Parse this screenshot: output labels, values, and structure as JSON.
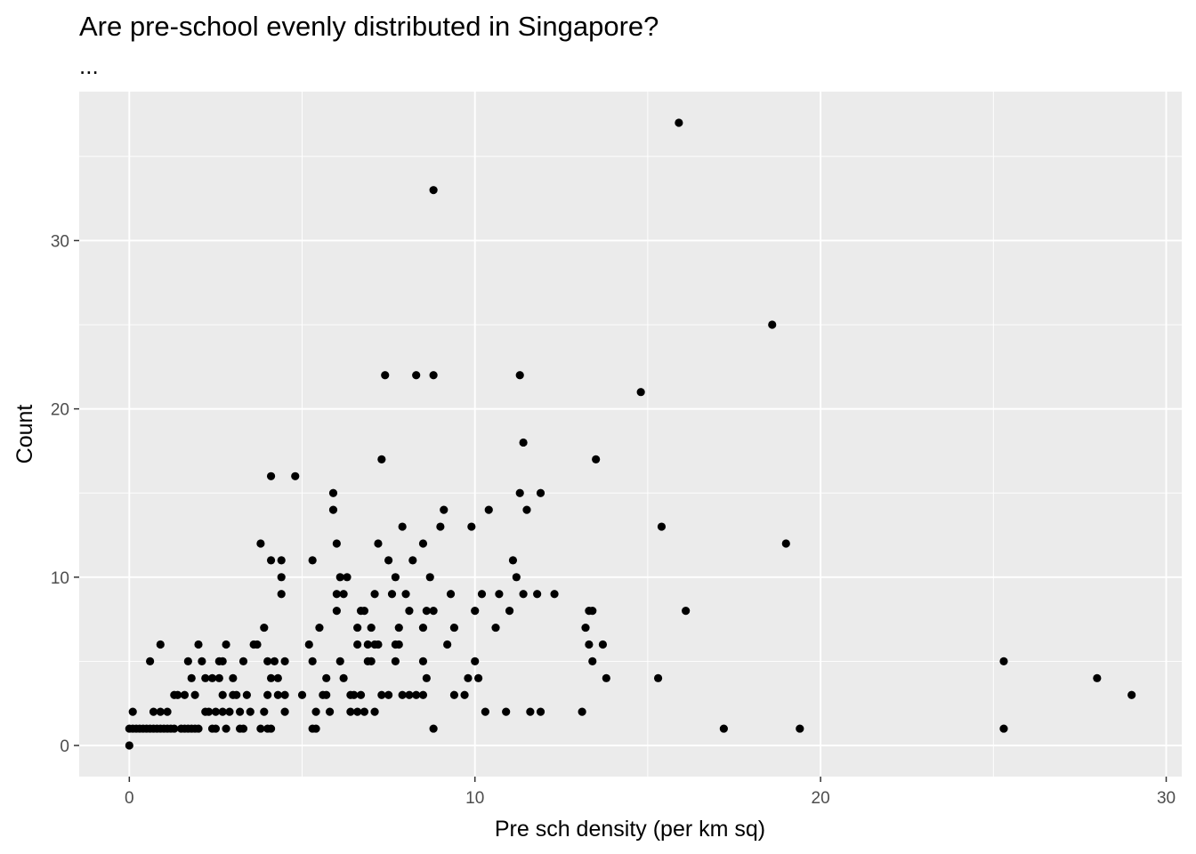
{
  "chart_data": {
    "type": "scatter",
    "title": "Are pre-school evenly distributed in Singapore?",
    "subtitle": "...",
    "xlabel": "Pre sch density (per km sq)",
    "ylabel": "Count",
    "xlim": [
      -1.45,
      30.45
    ],
    "ylim": [
      -1.85,
      38.85
    ],
    "x_ticks": [
      0,
      10,
      20,
      30
    ],
    "y_ticks": [
      0,
      10,
      20,
      30
    ],
    "x_tick_labels": [
      "0",
      "10",
      "20",
      "30"
    ],
    "y_tick_labels": [
      "0",
      "10",
      "20",
      "30"
    ],
    "grid": true,
    "colors": {
      "panel": "#ebebeb",
      "grid_major": "#ffffff",
      "point": "#000000"
    },
    "points": [
      [
        0,
        0
      ],
      [
        0,
        1
      ],
      [
        0.1,
        1
      ],
      [
        0.1,
        2
      ],
      [
        0.2,
        1
      ],
      [
        0.3,
        1
      ],
      [
        0.4,
        1
      ],
      [
        0.5,
        1
      ],
      [
        0.6,
        5
      ],
      [
        0.6,
        1
      ],
      [
        0.7,
        2
      ],
      [
        0.7,
        1
      ],
      [
        0.8,
        1
      ],
      [
        0.9,
        6
      ],
      [
        0.9,
        2
      ],
      [
        0.9,
        1
      ],
      [
        1.0,
        1
      ],
      [
        1.1,
        2
      ],
      [
        1.1,
        1
      ],
      [
        1.2,
        1
      ],
      [
        1.3,
        3
      ],
      [
        1.3,
        1
      ],
      [
        1.4,
        3
      ],
      [
        1.5,
        1
      ],
      [
        1.6,
        3
      ],
      [
        1.6,
        1
      ],
      [
        1.7,
        1
      ],
      [
        1.7,
        5
      ],
      [
        1.8,
        4
      ],
      [
        1.8,
        1
      ],
      [
        1.9,
        1
      ],
      [
        1.9,
        3
      ],
      [
        2.0,
        6
      ],
      [
        2.0,
        1
      ],
      [
        2.1,
        5
      ],
      [
        2.2,
        4
      ],
      [
        2.2,
        2
      ],
      [
        2.3,
        2
      ],
      [
        2.4,
        4
      ],
      [
        2.4,
        1
      ],
      [
        2.5,
        2
      ],
      [
        2.5,
        1
      ],
      [
        2.6,
        5
      ],
      [
        2.6,
        4
      ],
      [
        2.7,
        5
      ],
      [
        2.7,
        3
      ],
      [
        2.7,
        2
      ],
      [
        2.8,
        6
      ],
      [
        2.8,
        1
      ],
      [
        2.9,
        2
      ],
      [
        3.0,
        3
      ],
      [
        3.0,
        4
      ],
      [
        3.1,
        3
      ],
      [
        3.2,
        1
      ],
      [
        3.2,
        2
      ],
      [
        3.3,
        5
      ],
      [
        3.3,
        1
      ],
      [
        3.4,
        3
      ],
      [
        3.5,
        2
      ],
      [
        3.6,
        6
      ],
      [
        3.7,
        6
      ],
      [
        3.8,
        12
      ],
      [
        3.8,
        1
      ],
      [
        3.9,
        2
      ],
      [
        3.9,
        7
      ],
      [
        4.0,
        5
      ],
      [
        4.0,
        1
      ],
      [
        4.0,
        3
      ],
      [
        4.1,
        11
      ],
      [
        4.1,
        1
      ],
      [
        4.1,
        4
      ],
      [
        4.1,
        16
      ],
      [
        4.2,
        5
      ],
      [
        4.3,
        3
      ],
      [
        4.3,
        4
      ],
      [
        4.4,
        11
      ],
      [
        4.4,
        9
      ],
      [
        4.4,
        10
      ],
      [
        4.5,
        3
      ],
      [
        4.5,
        5
      ],
      [
        4.5,
        2
      ],
      [
        4.8,
        16
      ],
      [
        5.0,
        3
      ],
      [
        5.2,
        6
      ],
      [
        5.3,
        1
      ],
      [
        5.3,
        5
      ],
      [
        5.3,
        11
      ],
      [
        5.4,
        2
      ],
      [
        5.4,
        1
      ],
      [
        5.5,
        7
      ],
      [
        5.6,
        3
      ],
      [
        5.7,
        3
      ],
      [
        5.7,
        4
      ],
      [
        5.8,
        2
      ],
      [
        5.9,
        15
      ],
      [
        5.9,
        14
      ],
      [
        6.0,
        12
      ],
      [
        6.0,
        9
      ],
      [
        6.0,
        8
      ],
      [
        6.1,
        5
      ],
      [
        6.1,
        10
      ],
      [
        6.2,
        9
      ],
      [
        6.2,
        4
      ],
      [
        6.3,
        10
      ],
      [
        6.4,
        3
      ],
      [
        6.4,
        2
      ],
      [
        6.5,
        3
      ],
      [
        6.6,
        7
      ],
      [
        6.6,
        2
      ],
      [
        6.6,
        6
      ],
      [
        6.7,
        8
      ],
      [
        6.7,
        3
      ],
      [
        6.8,
        8
      ],
      [
        6.8,
        2
      ],
      [
        6.9,
        5
      ],
      [
        6.9,
        6
      ],
      [
        7.0,
        5
      ],
      [
        7.0,
        7
      ],
      [
        7.1,
        9
      ],
      [
        7.1,
        2
      ],
      [
        7.1,
        6
      ],
      [
        7.2,
        12
      ],
      [
        7.2,
        6
      ],
      [
        7.3,
        17
      ],
      [
        7.3,
        3
      ],
      [
        7.4,
        22
      ],
      [
        7.5,
        11
      ],
      [
        7.5,
        3
      ],
      [
        7.6,
        9
      ],
      [
        7.7,
        10
      ],
      [
        7.7,
        6
      ],
      [
        7.7,
        5
      ],
      [
        7.8,
        6
      ],
      [
        7.8,
        7
      ],
      [
        7.9,
        13
      ],
      [
        7.9,
        3
      ],
      [
        8.0,
        9
      ],
      [
        8.1,
        8
      ],
      [
        8.1,
        3
      ],
      [
        8.2,
        11
      ],
      [
        8.3,
        22
      ],
      [
        8.3,
        3
      ],
      [
        8.5,
        12
      ],
      [
        8.5,
        7
      ],
      [
        8.5,
        5
      ],
      [
        8.5,
        3
      ],
      [
        8.6,
        4
      ],
      [
        8.6,
        8
      ],
      [
        8.7,
        10
      ],
      [
        8.8,
        22
      ],
      [
        8.8,
        8
      ],
      [
        8.8,
        1
      ],
      [
        9.0,
        13
      ],
      [
        9.1,
        14
      ],
      [
        9.2,
        6
      ],
      [
        9.3,
        9
      ],
      [
        9.4,
        3
      ],
      [
        9.4,
        7
      ],
      [
        9.7,
        3
      ],
      [
        9.8,
        4
      ],
      [
        9.9,
        13
      ],
      [
        10.0,
        8
      ],
      [
        10.0,
        5
      ],
      [
        10.1,
        4
      ],
      [
        10.2,
        9
      ],
      [
        10.3,
        2
      ],
      [
        10.4,
        14
      ],
      [
        10.6,
        7
      ],
      [
        10.7,
        9
      ],
      [
        10.9,
        2
      ],
      [
        11.0,
        8
      ],
      [
        11.1,
        11
      ],
      [
        11.2,
        10
      ],
      [
        11.3,
        22
      ],
      [
        11.3,
        15
      ],
      [
        11.4,
        18
      ],
      [
        11.4,
        9
      ],
      [
        11.5,
        14
      ],
      [
        11.6,
        2
      ],
      [
        11.8,
        9
      ],
      [
        11.9,
        2
      ],
      [
        11.9,
        15
      ],
      [
        12.3,
        9
      ],
      [
        13.1,
        2
      ],
      [
        13.2,
        7
      ],
      [
        13.3,
        8
      ],
      [
        13.3,
        6
      ],
      [
        13.4,
        5
      ],
      [
        13.4,
        8
      ],
      [
        13.5,
        17
      ],
      [
        13.7,
        6
      ],
      [
        13.8,
        4
      ],
      [
        14.8,
        21
      ],
      [
        15.3,
        4
      ],
      [
        15.4,
        13
      ],
      [
        15.9,
        37
      ],
      [
        16.1,
        8
      ],
      [
        17.2,
        1
      ],
      [
        18.6,
        25
      ],
      [
        19.0,
        12
      ],
      [
        19.4,
        1
      ],
      [
        25.3,
        1
      ],
      [
        25.3,
        5
      ],
      [
        28.0,
        4
      ],
      [
        29.0,
        3
      ],
      [
        8.8,
        33
      ]
    ]
  }
}
